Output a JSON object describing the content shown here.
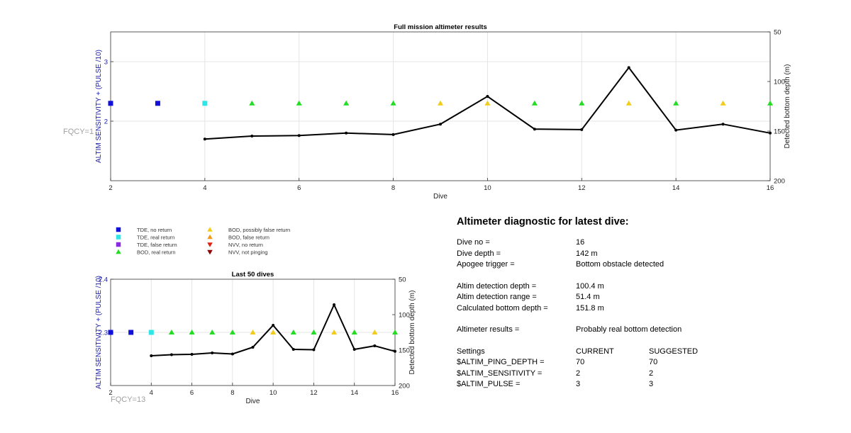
{
  "colors": {
    "tde_no_return": "#1010d8",
    "tde_real_return": "#2ee6e6",
    "tde_false_return": "#8a2be2",
    "bod_real_return": "#22dd22",
    "bod_possibly_false": "#f2cc1a",
    "bod_false_return": "#f29a1a",
    "nvv_no_return": "#e02010",
    "nvv_not_pinging": "#8b0000",
    "left_axis": "#1a1aa6",
    "fqcy_text": "#a0a0a0",
    "line": "#000000"
  },
  "legend": {
    "items": [
      {
        "label": "TDE, no return",
        "marker": "square",
        "color": "#1010d8"
      },
      {
        "label": "TDE, real return",
        "marker": "square",
        "color": "#2ee6e6"
      },
      {
        "label": "TDE, false return",
        "marker": "square",
        "color": "#8a2be2"
      },
      {
        "label": "BOD, real return",
        "marker": "triangle-up",
        "color": "#22dd22"
      },
      {
        "label": "BOD, possibly false return",
        "marker": "triangle-up",
        "color": "#f2cc1a"
      },
      {
        "label": "BOD, false return",
        "marker": "triangle-up",
        "color": "#f29a1a"
      },
      {
        "label": "NVV, no return",
        "marker": "triangle-down",
        "color": "#e02010"
      },
      {
        "label": "NVV, not pinging",
        "marker": "triangle-down",
        "color": "#8b0000"
      }
    ]
  },
  "chart_data": [
    {
      "type": "scatter",
      "title": "Full mission altimeter results",
      "xlabel": "Dive",
      "ylabel_left": "ALTIM SENSITIVITY + (PULSE /10)",
      "ylabel_right": "Detected bottom depth (m)",
      "annotation": "FQCY=1",
      "xlim": [
        2,
        16
      ],
      "ylim_left": [
        1,
        3.5
      ],
      "ylim_right": [
        50,
        200
      ],
      "right_axis_reversed": true,
      "xticks": [
        2,
        4,
        6,
        8,
        10,
        12,
        14,
        16
      ],
      "yticks_left": [
        2,
        3
      ],
      "yticks_right": [
        50,
        100,
        150,
        200
      ],
      "grid": true,
      "markers": [
        {
          "x": 2,
          "y": 2.3,
          "type": "TDE, no return"
        },
        {
          "x": 3,
          "y": 2.3,
          "type": "TDE, no return"
        },
        {
          "x": 4,
          "y": 2.3,
          "type": "TDE, real return"
        },
        {
          "x": 5,
          "y": 2.3,
          "type": "BOD, real return"
        },
        {
          "x": 6,
          "y": 2.3,
          "type": "BOD, real return"
        },
        {
          "x": 7,
          "y": 2.3,
          "type": "BOD, real return"
        },
        {
          "x": 8,
          "y": 2.3,
          "type": "BOD, real return"
        },
        {
          "x": 9,
          "y": 2.3,
          "type": "BOD, possibly false return"
        },
        {
          "x": 10,
          "y": 2.3,
          "type": "BOD, possibly false return"
        },
        {
          "x": 11,
          "y": 2.3,
          "type": "BOD, real return"
        },
        {
          "x": 12,
          "y": 2.3,
          "type": "BOD, real return"
        },
        {
          "x": 13,
          "y": 2.3,
          "type": "BOD, possibly false return"
        },
        {
          "x": 14,
          "y": 2.3,
          "type": "BOD, real return"
        },
        {
          "x": 15,
          "y": 2.3,
          "type": "BOD, possibly false return"
        },
        {
          "x": 16,
          "y": 2.3,
          "type": "BOD, real return"
        }
      ],
      "depth_series": {
        "x": [
          4,
          5,
          6,
          7,
          8,
          9,
          10,
          11,
          12,
          13,
          14,
          15,
          16
        ],
        "y": [
          158,
          155,
          154.5,
          152,
          153.5,
          143,
          115,
          148,
          148.5,
          86,
          149,
          143,
          152
        ]
      }
    },
    {
      "type": "scatter",
      "title": "Last 50 dives",
      "xlabel": "Dive",
      "ylabel_left": "ALTIM SENSITIVITY + (PULSE /10)",
      "ylabel_right": "Detected bottom depth (m)",
      "annotation": "FQCY=13",
      "xlim": [
        2,
        16
      ],
      "ylim_left": [
        2.2,
        2.4
      ],
      "ylim_right": [
        50,
        200
      ],
      "right_axis_reversed": true,
      "xticks": [
        2,
        4,
        6,
        8,
        10,
        12,
        14,
        16
      ],
      "yticks_left": [
        2.3,
        2.4
      ],
      "yticks_right": [
        50,
        100,
        150,
        200
      ],
      "grid": true,
      "markers": [
        {
          "x": 2,
          "y": 2.3,
          "type": "TDE, no return"
        },
        {
          "x": 3,
          "y": 2.3,
          "type": "TDE, no return"
        },
        {
          "x": 4,
          "y": 2.3,
          "type": "TDE, real return"
        },
        {
          "x": 5,
          "y": 2.3,
          "type": "BOD, real return"
        },
        {
          "x": 6,
          "y": 2.3,
          "type": "BOD, real return"
        },
        {
          "x": 7,
          "y": 2.3,
          "type": "BOD, real return"
        },
        {
          "x": 8,
          "y": 2.3,
          "type": "BOD, real return"
        },
        {
          "x": 9,
          "y": 2.3,
          "type": "BOD, possibly false return"
        },
        {
          "x": 10,
          "y": 2.3,
          "type": "BOD, possibly false return"
        },
        {
          "x": 11,
          "y": 2.3,
          "type": "BOD, real return"
        },
        {
          "x": 12,
          "y": 2.3,
          "type": "BOD, real return"
        },
        {
          "x": 13,
          "y": 2.3,
          "type": "BOD, possibly false return"
        },
        {
          "x": 14,
          "y": 2.3,
          "type": "BOD, real return"
        },
        {
          "x": 15,
          "y": 2.3,
          "type": "BOD, possibly false return"
        },
        {
          "x": 16,
          "y": 2.3,
          "type": "BOD, real return"
        }
      ],
      "depth_series": {
        "x": [
          4,
          5,
          6,
          7,
          8,
          9,
          10,
          11,
          12,
          13,
          14,
          15,
          16
        ],
        "y": [
          158,
          156.5,
          156,
          154,
          155.5,
          146,
          115,
          149,
          149.5,
          86,
          149,
          144,
          151.8
        ]
      }
    }
  ],
  "diagnostic": {
    "title": "Altimeter diagnostic for latest dive:",
    "dive_no_label": "Dive no =",
    "dive_no_value": "16",
    "dive_depth_label": "Dive depth =",
    "dive_depth_value": "142 m",
    "apogee_label": "Apogee trigger =",
    "apogee_value": "Bottom obstacle detected",
    "altim_detection_depth_label": "Altim detection depth =",
    "altim_detection_depth_value": "100.4 m",
    "altim_detection_range_label": "Altim detection range =",
    "altim_detection_range_value": "51.4 m",
    "calc_bottom_depth_label": "Calculated bottom depth =",
    "calc_bottom_depth_value": "151.8 m",
    "results_label": "Altimeter results =",
    "results_value": "Probably real bottom detection",
    "settings_label": "Settings",
    "current_label": "CURRENT",
    "suggested_label": "SUGGESTED",
    "ping_depth_label": "$ALTIM_PING_DEPTH =",
    "ping_depth_current": "70",
    "ping_depth_suggested": "70",
    "sensitivity_label": "$ALTIM_SENSITIVITY =",
    "sensitivity_current": "2",
    "sensitivity_suggested": "2",
    "pulse_label": "$ALTIM_PULSE =",
    "pulse_current": "3",
    "pulse_suggested": "3"
  }
}
